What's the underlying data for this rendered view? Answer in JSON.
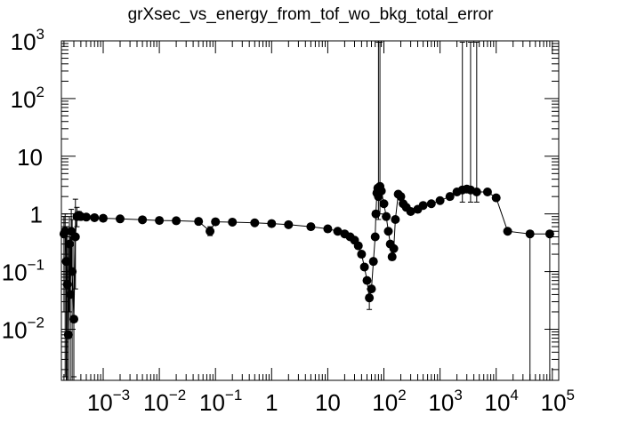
{
  "chart_data": {
    "type": "scatter",
    "title": "grXsec_vs_energy_from_tof_wo_bkg_total_error",
    "xlabel": "",
    "ylabel": "",
    "x_scale": "log",
    "y_scale": "log",
    "xlim": [
      0.00018,
      130000
    ],
    "ylim": [
      0.0013,
      1000
    ],
    "grid": false,
    "legend": "none",
    "x_ticks": [
      {
        "value": 0.001,
        "base": "10",
        "exp": "−3"
      },
      {
        "value": 0.01,
        "base": "10",
        "exp": "−2"
      },
      {
        "value": 0.1,
        "base": "10",
        "exp": "−1"
      },
      {
        "value": 1,
        "base": "1",
        "exp": ""
      },
      {
        "value": 10,
        "base": "10",
        "exp": ""
      },
      {
        "value": 100,
        "base": "10",
        "exp": "2"
      },
      {
        "value": 1000,
        "base": "10",
        "exp": "3"
      },
      {
        "value": 10000,
        "base": "10",
        "exp": "4"
      },
      {
        "value": 100000,
        "base": "10",
        "exp": "5"
      }
    ],
    "y_ticks": [
      {
        "value": 0.01,
        "base": "10",
        "exp": "−2"
      },
      {
        "value": 0.1,
        "base": "10",
        "exp": "−1"
      },
      {
        "value": 1,
        "base": "1",
        "exp": ""
      },
      {
        "value": 10,
        "base": "10",
        "exp": ""
      },
      {
        "value": 100,
        "base": "10",
        "exp": "2"
      },
      {
        "value": 1000,
        "base": "10",
        "exp": "3"
      }
    ],
    "series": [
      {
        "marker": "filled-circle",
        "color": "#000000",
        "points": [
          {
            "x": 0.0002,
            "y": 0.45,
            "ylo": 0.02,
            "yhi": 0.9
          },
          {
            "x": 0.00021,
            "y": 0.5,
            "ylo": 0.0015,
            "yhi": 1.0
          },
          {
            "x": 0.00022,
            "y": 0.15,
            "ylo": 0.0013,
            "yhi": 0.6
          },
          {
            "x": 0.00023,
            "y": 0.06,
            "ylo": 0.0013,
            "yhi": 0.5
          },
          {
            "x": 0.00024,
            "y": 0.008,
            "ylo": 0.0013,
            "yhi": 0.3
          },
          {
            "x": 0.00025,
            "y": 0.3,
            "ylo": 0.02,
            "yhi": 0.9
          },
          {
            "x": 0.00026,
            "y": 0.04,
            "ylo": 0.0013,
            "yhi": 0.4
          },
          {
            "x": 0.00027,
            "y": 0.5,
            "ylo": 0.1,
            "yhi": 1.2
          },
          {
            "x": 0.00028,
            "y": 0.1,
            "ylo": 0.0013,
            "yhi": 0.8
          },
          {
            "x": 0.0003,
            "y": 0.015,
            "ylo": 0.0015,
            "yhi": 0.4
          },
          {
            "x": 0.00032,
            "y": 0.4,
            "ylo": 0.05,
            "yhi": 1.8
          },
          {
            "x": 0.00034,
            "y": 0.9,
            "ylo": 0.6,
            "yhi": 1.3
          },
          {
            "x": 0.00037,
            "y": 0.95,
            "ylo": 0.8,
            "yhi": 1.1
          },
          {
            "x": 0.0004,
            "y": 0.9,
            "ylo": 0.8,
            "yhi": 1.0
          },
          {
            "x": 0.0005,
            "y": 0.88
          },
          {
            "x": 0.0007,
            "y": 0.86
          },
          {
            "x": 0.001,
            "y": 0.84
          },
          {
            "x": 0.002,
            "y": 0.82
          },
          {
            "x": 0.005,
            "y": 0.79
          },
          {
            "x": 0.01,
            "y": 0.77
          },
          {
            "x": 0.02,
            "y": 0.76
          },
          {
            "x": 0.05,
            "y": 0.74
          },
          {
            "x": 0.08,
            "y": 0.5,
            "ylo": 0.42,
            "yhi": 0.6
          },
          {
            "x": 0.1,
            "y": 0.73
          },
          {
            "x": 0.2,
            "y": 0.72
          },
          {
            "x": 0.5,
            "y": 0.7
          },
          {
            "x": 1,
            "y": 0.68
          },
          {
            "x": 2,
            "y": 0.65
          },
          {
            "x": 5,
            "y": 0.6
          },
          {
            "x": 10,
            "y": 0.55
          },
          {
            "x": 15,
            "y": 0.5
          },
          {
            "x": 20,
            "y": 0.45
          },
          {
            "x": 25,
            "y": 0.4
          },
          {
            "x": 30,
            "y": 0.35
          },
          {
            "x": 35,
            "y": 0.28
          },
          {
            "x": 40,
            "y": 0.2
          },
          {
            "x": 45,
            "y": 0.12
          },
          {
            "x": 50,
            "y": 0.07
          },
          {
            "x": 55,
            "y": 0.035,
            "ylo": 0.022,
            "yhi": 0.05
          },
          {
            "x": 60,
            "y": 0.05
          },
          {
            "x": 65,
            "y": 0.15
          },
          {
            "x": 70,
            "y": 0.4
          },
          {
            "x": 72,
            "y": 1.0
          },
          {
            "x": 75,
            "y": 2.3
          },
          {
            "x": 78,
            "y": 2.8
          },
          {
            "x": 80,
            "y": 2.0,
            "ylo": 0.8,
            "yhi": 950
          },
          {
            "x": 85,
            "y": 3.0,
            "ylo": 1.0,
            "yhi": 950
          },
          {
            "x": 90,
            "y": 2.5
          },
          {
            "x": 100,
            "y": 1.5
          },
          {
            "x": 110,
            "y": 0.9
          },
          {
            "x": 120,
            "y": 0.5
          },
          {
            "x": 130,
            "y": 0.3
          },
          {
            "x": 140,
            "y": 0.18
          },
          {
            "x": 150,
            "y": 0.25
          },
          {
            "x": 160,
            "y": 0.8
          },
          {
            "x": 180,
            "y": 2.2
          },
          {
            "x": 200,
            "y": 2.0
          },
          {
            "x": 220,
            "y": 1.5
          },
          {
            "x": 250,
            "y": 1.3
          },
          {
            "x": 300,
            "y": 1.1
          },
          {
            "x": 400,
            "y": 1.2
          },
          {
            "x": 500,
            "y": 1.4
          },
          {
            "x": 700,
            "y": 1.5
          },
          {
            "x": 1000,
            "y": 1.7
          },
          {
            "x": 1500,
            "y": 2.0
          },
          {
            "x": 2000,
            "y": 2.4
          },
          {
            "x": 2500,
            "y": 2.6,
            "ylo": 1.6,
            "yhi": 950
          },
          {
            "x": 3000,
            "y": 2.7
          },
          {
            "x": 3500,
            "y": 2.6,
            "ylo": 1.6,
            "yhi": 950
          },
          {
            "x": 4500,
            "y": 2.4,
            "ylo": 1.6,
            "yhi": 950
          },
          {
            "x": 7000,
            "y": 2.4
          },
          {
            "x": 10000,
            "y": 1.9
          },
          {
            "x": 16000,
            "y": 0.5
          },
          {
            "x": 40000,
            "y": 0.45,
            "ylo": 0.0013,
            "yhi": 0.5
          },
          {
            "x": 90000,
            "y": 0.45,
            "ylo": 0.0013,
            "yhi": 0.5
          }
        ]
      }
    ]
  }
}
